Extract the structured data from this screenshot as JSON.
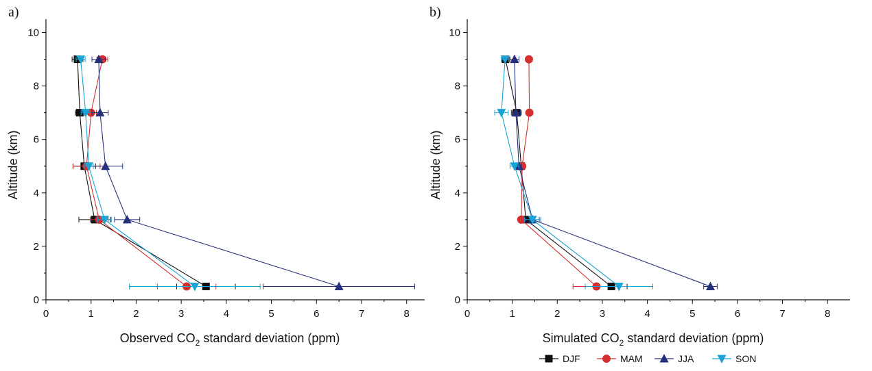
{
  "chart_data": [
    {
      "type": "line",
      "panel_label": "a)",
      "xlabel_pre": "Observed CO",
      "xlabel_sub": "2",
      "xlabel_post": " standard deviation (ppm)",
      "ylabel": "Altitude (km)",
      "xlim": [
        0,
        8.4
      ],
      "ylim": [
        0,
        10.5
      ],
      "xticks": [
        "0",
        "1",
        "2",
        "3",
        "4",
        "5",
        "6",
        "7",
        "8"
      ],
      "yticks": [
        "0",
        "2",
        "4",
        "6",
        "8",
        "10"
      ],
      "series": [
        {
          "name": "DJF",
          "altitudes": [
            0.5,
            3,
            5,
            7,
            9
          ],
          "values": [
            3.55,
            1.08,
            0.85,
            0.75,
            0.7
          ],
          "err": [
            0.65,
            0.35,
            0.25,
            0.1,
            0.12
          ]
        },
        {
          "name": "MAM",
          "altitudes": [
            0.5,
            3,
            5,
            7,
            9
          ],
          "values": [
            3.12,
            1.18,
            0.9,
            1.0,
            1.25
          ],
          "err": [
            0.65,
            0.2,
            0.3,
            0.12,
            0.12
          ]
        },
        {
          "name": "JJA",
          "altitudes": [
            0.5,
            3,
            5,
            7,
            9
          ],
          "values": [
            6.5,
            1.8,
            1.32,
            1.2,
            1.17
          ],
          "err": [
            1.68,
            0.28,
            0.38,
            0.18,
            0.15
          ]
        },
        {
          "name": "SON",
          "altitudes": [
            0.5,
            3,
            5,
            7,
            9
          ],
          "values": [
            3.3,
            1.3,
            0.95,
            0.88,
            0.77
          ],
          "err": [
            1.45,
            0.15,
            0.1,
            0.1,
            0.1
          ]
        }
      ]
    },
    {
      "type": "line",
      "panel_label": "b)",
      "xlabel_pre": "Simulated CO",
      "xlabel_sub": "2",
      "xlabel_post": " standard deviation (ppm)",
      "ylabel": "Altitude (km)",
      "xlim": [
        0,
        8.5
      ],
      "ylim": [
        0,
        10.5
      ],
      "xticks": [
        "0",
        "1",
        "2",
        "3",
        "4",
        "5",
        "6",
        "7",
        "8"
      ],
      "yticks": [
        "0",
        "2",
        "4",
        "6",
        "8",
        "10"
      ],
      "series": [
        {
          "name": "DJF",
          "altitudes": [
            0.5,
            3,
            5,
            7,
            9
          ],
          "values": [
            3.2,
            1.3,
            1.2,
            1.1,
            0.85
          ],
          "err": [
            0.35,
            0.1,
            0.05,
            0.1,
            0.08
          ]
        },
        {
          "name": "MAM",
          "altitudes": [
            0.5,
            3,
            5,
            7,
            9
          ],
          "values": [
            2.87,
            1.2,
            1.22,
            1.38,
            1.37
          ],
          "err": [
            0.52,
            0.05,
            0.05,
            0.05,
            0.05
          ]
        },
        {
          "name": "JJA",
          "altitudes": [
            0.5,
            3,
            5,
            7,
            9
          ],
          "values": [
            5.4,
            1.45,
            1.15,
            1.08,
            1.05
          ],
          "err": [
            0.15,
            0.15,
            0.05,
            0.1,
            0.1
          ]
        },
        {
          "name": "SON",
          "altitudes": [
            0.5,
            3,
            5,
            7,
            9
          ],
          "values": [
            3.37,
            1.45,
            1.05,
            0.76,
            0.84
          ],
          "err": [
            0.75,
            0.18,
            0.1,
            0.15,
            0.08
          ]
        }
      ]
    }
  ],
  "legend": [
    {
      "name": "DJF",
      "color": "#111111",
      "marker": "square"
    },
    {
      "name": "MAM",
      "color": "#d32f2f",
      "marker": "circle"
    },
    {
      "name": "JJA",
      "color": "#26307a",
      "marker": "triangle-up"
    },
    {
      "name": "SON",
      "color": "#1ba3d6",
      "marker": "triangle-down"
    }
  ]
}
